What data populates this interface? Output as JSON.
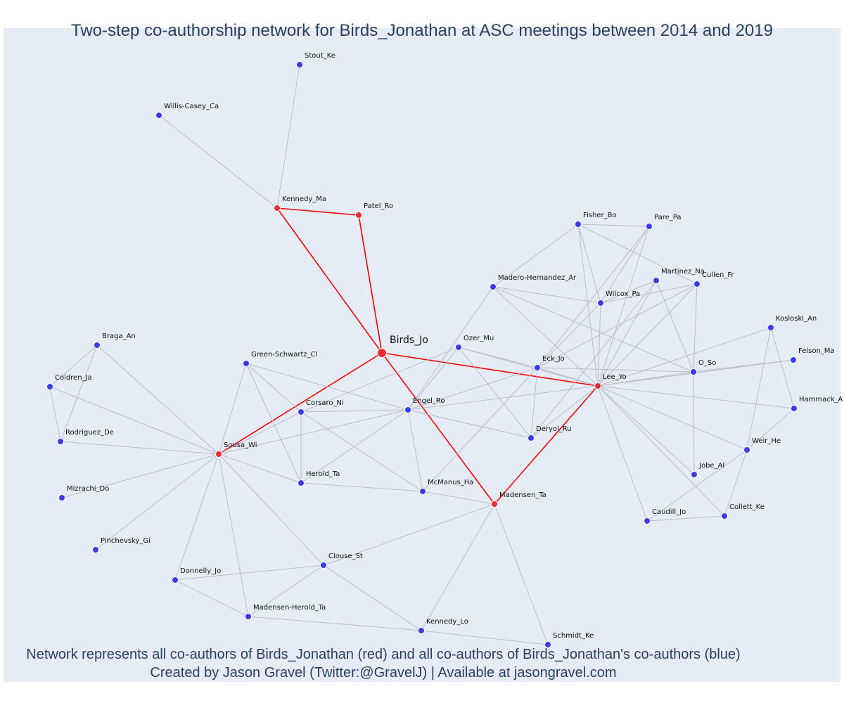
{
  "title": "Two-step co-authorship network for Birds_Jonathan at ASC meetings between 2014 and 2019",
  "footer": {
    "line1": "Network represents all co-authors of Birds_Jonathan (red) and all co-authors of Birds_Jonathan's co-authors (blue)",
    "line2": "Created by Jason Gravel (Twitter:@GravelJ) | Available at jasongravel.com"
  },
  "colors": {
    "coauthor": "#ef2b2b",
    "second_step": "#3b3bea",
    "edge": "#b8bccb",
    "ego_edge": "#ff0000",
    "background": "#e5ecf6"
  },
  "nodes": [
    {
      "id": "Birds_Jo",
      "label": "Birds_Jo",
      "group": "ego"
    },
    {
      "id": "Kennedy_Ma",
      "label": "Kennedy_Ma",
      "group": "coauthor"
    },
    {
      "id": "Patel_Ro",
      "label": "Patel_Ro",
      "group": "coauthor"
    },
    {
      "id": "Sousa_Wi",
      "label": "Sousa_Wi",
      "group": "coauthor"
    },
    {
      "id": "Lee_Yo",
      "label": "Lee_Yo",
      "group": "coauthor"
    },
    {
      "id": "Madensen_Ta",
      "label": "Madensen_Ta",
      "group": "coauthor"
    },
    {
      "id": "Stout_Ke",
      "label": "Stout_Ke",
      "group": "second"
    },
    {
      "id": "Willis-Casey_Ca",
      "label": "Willis-Casey_Ca",
      "group": "second"
    },
    {
      "id": "Fisher_Bo",
      "label": "Fisher_Bo",
      "group": "second"
    },
    {
      "id": "Pare_Pa",
      "label": "Pare_Pa",
      "group": "second"
    },
    {
      "id": "Martinez_Na",
      "label": "Martinez_Na",
      "group": "second"
    },
    {
      "id": "Cullen_Fr",
      "label": "Cullen_Fr",
      "group": "second"
    },
    {
      "id": "Madero-Hernandez_Ar",
      "label": "Madero-Hernandez_Ar",
      "group": "second"
    },
    {
      "id": "Wilcox_Pa",
      "label": "Wilcox_Pa",
      "group": "second"
    },
    {
      "id": "Kosloski_An",
      "label": "Kosloski_An",
      "group": "second"
    },
    {
      "id": "Felson_Ma",
      "label": "Felson_Ma",
      "group": "second"
    },
    {
      "id": "O_So",
      "label": "O_So",
      "group": "second"
    },
    {
      "id": "Hammack_A",
      "label": "Hammack_A",
      "group": "second"
    },
    {
      "id": "Ozer_Mu",
      "label": "Ozer_Mu",
      "group": "second"
    },
    {
      "id": "Eck_Jo",
      "label": "Eck_Jo",
      "group": "second"
    },
    {
      "id": "Braga_An",
      "label": "Braga_An",
      "group": "second"
    },
    {
      "id": "Green-Schwartz_Cl",
      "label": "Green-Schwartz_Cl",
      "group": "second"
    },
    {
      "id": "Coldren_Ja",
      "label": "Coldren_Ja",
      "group": "second"
    },
    {
      "id": "Corsaro_Ni",
      "label": "Corsaro_Ni",
      "group": "second"
    },
    {
      "id": "Engel_Ro",
      "label": "Engel_Ro",
      "group": "second"
    },
    {
      "id": "Rodriguez_De",
      "label": "Rodriguez_De",
      "group": "second"
    },
    {
      "id": "Deryol_Ru",
      "label": "Deryol_Ru",
      "group": "second"
    },
    {
      "id": "Weir_He",
      "label": "Weir_He",
      "group": "second"
    },
    {
      "id": "Herold_Ta",
      "label": "Herold_Ta",
      "group": "second"
    },
    {
      "id": "Jobe_Al",
      "label": "Jobe_Al",
      "group": "second"
    },
    {
      "id": "Mizrachi_Do",
      "label": "Mizrachi_Do",
      "group": "second"
    },
    {
      "id": "McManus_Ha",
      "label": "McManus_Ha",
      "group": "second"
    },
    {
      "id": "Collett_Ke",
      "label": "Collett_Ke",
      "group": "second"
    },
    {
      "id": "Caudill_Jo",
      "label": "Caudill_Jo",
      "group": "second"
    },
    {
      "id": "Pinchevsky_Gi",
      "label": "Pinchevsky_Gi",
      "group": "second"
    },
    {
      "id": "Clouse_St",
      "label": "Clouse_St",
      "group": "second"
    },
    {
      "id": "Donnelly_Jo",
      "label": "Donnelly_Jo",
      "group": "second"
    },
    {
      "id": "Madensen-Herold_Ta",
      "label": "Madensen-Herold_Ta",
      "group": "second"
    },
    {
      "id": "Kennedy_Lo",
      "label": "Kennedy_Lo",
      "group": "second"
    },
    {
      "id": "Schmidt_Ke",
      "label": "Schmidt_Ke",
      "group": "second"
    }
  ],
  "edges": [
    [
      "Birds_Jo",
      "Kennedy_Ma"
    ],
    [
      "Birds_Jo",
      "Patel_Ro"
    ],
    [
      "Birds_Jo",
      "Sousa_Wi"
    ],
    [
      "Birds_Jo",
      "Lee_Yo"
    ],
    [
      "Birds_Jo",
      "Madensen_Ta"
    ],
    [
      "Kennedy_Ma",
      "Patel_Ro"
    ],
    [
      "Lee_Yo",
      "Madensen_Ta"
    ],
    [
      "Kennedy_Ma",
      "Stout_Ke"
    ],
    [
      "Kennedy_Ma",
      "Willis-Casey_Ca"
    ],
    [
      "Fisher_Bo",
      "Pare_Pa"
    ],
    [
      "Fisher_Bo",
      "Cullen_Fr"
    ],
    [
      "Fisher_Bo",
      "Madero-Hernandez_Ar"
    ],
    [
      "Fisher_Bo",
      "Wilcox_Pa"
    ],
    [
      "Fisher_Bo",
      "Lee_Yo"
    ],
    [
      "Pare_Pa",
      "Wilcox_Pa"
    ],
    [
      "Pare_Pa",
      "Lee_Yo"
    ],
    [
      "Pare_Pa",
      "Eck_Jo"
    ],
    [
      "Martinez_Na",
      "Wilcox_Pa"
    ],
    [
      "Martinez_Na",
      "Lee_Yo"
    ],
    [
      "Martinez_Na",
      "O_So"
    ],
    [
      "Martinez_Na",
      "Deryol_Ru"
    ],
    [
      "Cullen_Fr",
      "Wilcox_Pa"
    ],
    [
      "Cullen_Fr",
      "Lee_Yo"
    ],
    [
      "Cullen_Fr",
      "O_So"
    ],
    [
      "Cullen_Fr",
      "Eck_Jo"
    ],
    [
      "Madero-Hernandez_Ar",
      "Wilcox_Pa"
    ],
    [
      "Madero-Hernandez_Ar",
      "O_So"
    ],
    [
      "Madero-Hernandez_Ar",
      "Lee_Yo"
    ],
    [
      "Madero-Hernandez_Ar",
      "Engel_Ro"
    ],
    [
      "Wilcox_Pa",
      "Lee_Yo"
    ],
    [
      "Wilcox_Pa",
      "Eck_Jo"
    ],
    [
      "Kosloski_An",
      "Lee_Yo"
    ],
    [
      "Kosloski_An",
      "Hammack_A"
    ],
    [
      "Kosloski_An",
      "Weir_He"
    ],
    [
      "Felson_Ma",
      "Lee_Yo"
    ],
    [
      "Felson_Ma",
      "O_So"
    ],
    [
      "O_So",
      "Lee_Yo"
    ],
    [
      "O_So",
      "Eck_Jo"
    ],
    [
      "O_So",
      "Jobe_Al"
    ],
    [
      "Hammack_A",
      "Lee_Yo"
    ],
    [
      "Hammack_A",
      "Weir_He"
    ],
    [
      "Ozer_Mu",
      "Lee_Yo"
    ],
    [
      "Ozer_Mu",
      "Engel_Ro"
    ],
    [
      "Ozer_Mu",
      "Deryol_Ru"
    ],
    [
      "Ozer_Mu",
      "Eck_Jo"
    ],
    [
      "Ozer_Mu",
      "Corsaro_Ni"
    ],
    [
      "Eck_Jo",
      "Lee_Yo"
    ],
    [
      "Eck_Jo",
      "Engel_Ro"
    ],
    [
      "Eck_Jo",
      "Deryol_Ru"
    ],
    [
      "Eck_Jo",
      "McManus_Ha"
    ],
    [
      "Engel_Ro",
      "Lee_Yo"
    ],
    [
      "Engel_Ro",
      "Deryol_Ru"
    ],
    [
      "Engel_Ro",
      "Corsaro_Ni"
    ],
    [
      "Engel_Ro",
      "Green-Schwartz_Cl"
    ],
    [
      "Engel_Ro",
      "Sousa_Wi"
    ],
    [
      "Engel_Ro",
      "Herold_Ta"
    ],
    [
      "Engel_Ro",
      "McManus_Ha"
    ],
    [
      "Lee_Yo",
      "Deryol_Ru"
    ],
    [
      "Lee_Yo",
      "Weir_He"
    ],
    [
      "Lee_Yo",
      "Jobe_Al"
    ],
    [
      "Lee_Yo",
      "Collett_Ke"
    ],
    [
      "Lee_Yo",
      "Caudill_Jo"
    ],
    [
      "Weir_He",
      "Collett_Ke"
    ],
    [
      "Weir_He",
      "Caudill_Jo"
    ],
    [
      "Caudill_Jo",
      "Collett_Ke"
    ],
    [
      "Braga_An",
      "Coldren_Ja"
    ],
    [
      "Braga_An",
      "Rodriguez_De"
    ],
    [
      "Braga_An",
      "Sousa_Wi"
    ],
    [
      "Coldren_Ja",
      "Rodriguez_De"
    ],
    [
      "Coldren_Ja",
      "Sousa_Wi"
    ],
    [
      "Rodriguez_De",
      "Sousa_Wi"
    ],
    [
      "Green-Schwartz_Cl",
      "Sousa_Wi"
    ],
    [
      "Green-Schwartz_Cl",
      "Corsaro_Ni"
    ],
    [
      "Green-Schwartz_Cl",
      "Herold_Ta"
    ],
    [
      "Corsaro_Ni",
      "Sousa_Wi"
    ],
    [
      "Corsaro_Ni",
      "Herold_Ta"
    ],
    [
      "Corsaro_Ni",
      "McManus_Ha"
    ],
    [
      "Sousa_Wi",
      "Herold_Ta"
    ],
    [
      "Sousa_Wi",
      "Mizrachi_Do"
    ],
    [
      "Sousa_Wi",
      "Pinchevsky_Gi"
    ],
    [
      "Sousa_Wi",
      "Donnelly_Jo"
    ],
    [
      "Sousa_Wi",
      "Madensen-Herold_Ta"
    ],
    [
      "Sousa_Wi",
      "Clouse_St"
    ],
    [
      "Herold_Ta",
      "McManus_Ha"
    ],
    [
      "McManus_Ha",
      "Madensen_Ta"
    ],
    [
      "Madensen_Ta",
      "Clouse_St"
    ],
    [
      "Madensen_Ta",
      "Kennedy_Lo"
    ],
    [
      "Madensen_Ta",
      "Schmidt_Ke"
    ],
    [
      "Clouse_St",
      "Donnelly_Jo"
    ],
    [
      "Clouse_St",
      "Madensen-Herold_Ta"
    ],
    [
      "Clouse_St",
      "Kennedy_Lo"
    ],
    [
      "Donnelly_Jo",
      "Madensen-Herold_Ta"
    ],
    [
      "Madensen-Herold_Ta",
      "Kennedy_Lo"
    ],
    [
      "Kennedy_Lo",
      "Schmidt_Ke"
    ]
  ]
}
